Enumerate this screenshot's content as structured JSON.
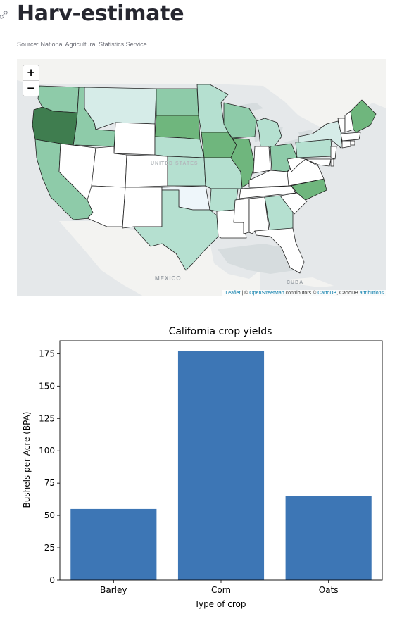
{
  "page": {
    "title": "Harv-estimate",
    "caption": "Source: National Agricultural Statistics Service"
  },
  "map": {
    "zoom_in_label": "+",
    "zoom_out_label": "−",
    "labels": {
      "country": "UNITED STATES",
      "mexico": "MEXICO",
      "cuba": "CUBA"
    },
    "attribution": {
      "leaflet": "Leaflet",
      "sep": " | © ",
      "osm": "OpenStreetMap",
      "contrib": " contributors © ",
      "cartodb": "CartoDB",
      "cartodb2": ", CartoDB ",
      "attributions": "attributions"
    },
    "colors": {
      "land": "#f4f4f2",
      "water": "#d4dadc",
      "dark": "#3f7d4f",
      "mid": "#6fb67d",
      "light": "#8ecba9",
      "pale": "#b5e0d0",
      "faint": "#d6ece8",
      "blank": "#ffffff"
    }
  },
  "chart_data": {
    "type": "bar",
    "title": "California crop yields",
    "xlabel": "Type of crop",
    "ylabel": "Bushels per Acre (BPA)",
    "categories": [
      "Barley",
      "Corn",
      "Oats"
    ],
    "values": [
      55,
      177,
      65
    ],
    "ylim": [
      0,
      185
    ],
    "yticks": [
      0,
      25,
      50,
      75,
      100,
      125,
      150,
      175
    ],
    "bar_color": "#3d76b5"
  }
}
